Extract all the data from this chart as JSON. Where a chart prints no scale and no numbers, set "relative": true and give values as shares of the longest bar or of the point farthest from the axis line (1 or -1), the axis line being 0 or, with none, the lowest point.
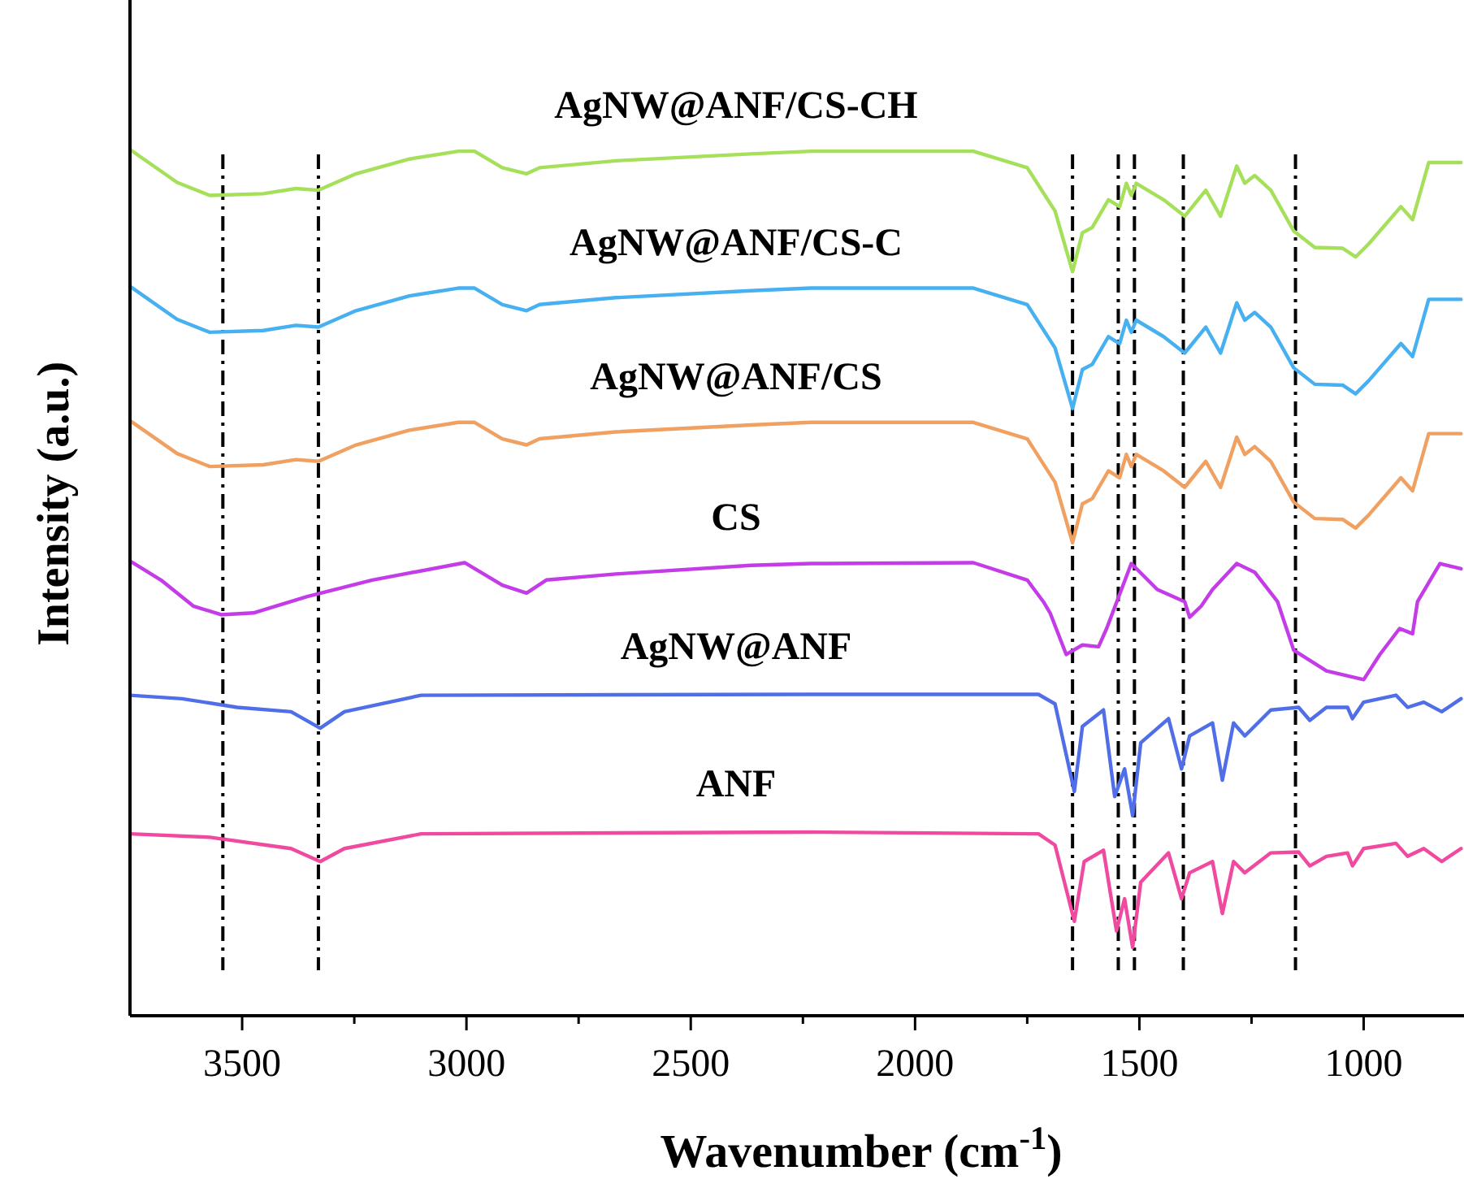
{
  "chart_data": {
    "type": "line",
    "relative": true,
    "xlabel": "Wavenumber (cm$^{-1}$)",
    "ylabel": "Intensity (a.u.)",
    "xlim": [
      3750,
      780
    ],
    "xticks": [
      3500,
      {
        "value": 3250,
        "label": null
      },
      3000,
      {
        "value": 2750,
        "label": null
      },
      2500,
      {
        "value": 2250,
        "label": null
      },
      2000,
      {
        "value": 1750,
        "label": null
      },
      1500,
      {
        "value": 1250,
        "label": null
      },
      1000
    ],
    "grid": false,
    "legend": false,
    "marker": "none",
    "line_style": "solid",
    "ref_lines": [
      {
        "axis": "x",
        "value": 3543,
        "line_style": "dashed",
        "color": "#000000"
      },
      {
        "axis": "x",
        "value": 3330,
        "line_style": "dashed",
        "color": "#000000"
      },
      {
        "axis": "x",
        "value": 1649,
        "line_style": "dashed",
        "color": "#000000"
      },
      {
        "axis": "x",
        "value": 1547,
        "line_style": "dashed",
        "color": "#000000"
      },
      {
        "axis": "x",
        "value": 1511,
        "line_style": "dashed",
        "color": "#000000"
      },
      {
        "axis": "x",
        "value": 1402,
        "line_style": "dashed",
        "color": "#000000"
      },
      {
        "axis": "x",
        "value": 1152,
        "line_style": "dashed",
        "color": "#000000"
      }
    ],
    "series": [
      {
        "name": "AgNW@ANF/CS-CH",
        "color": "#a6e05a",
        "x": [
          3750,
          3645,
          3572,
          3453,
          3380,
          3330,
          3246,
          3127,
          3018,
          2982,
          2920,
          2866,
          2837,
          2667,
          2366,
          2232,
          1870,
          1750,
          1688,
          1649,
          1627,
          1605,
          1569,
          1544,
          1529,
          1518,
          1507,
          1446,
          1399,
          1352,
          1319,
          1283,
          1265,
          1243,
          1207,
          1156,
          1109,
          1047,
          1018,
          989,
          917,
          891,
          855,
          783
        ],
        "values": [
          1.0,
          0.962,
          0.947,
          0.949,
          0.955,
          0.953,
          0.972,
          0.989,
          0.998,
          0.998,
          0.979,
          0.972,
          0.979,
          0.987,
          0.995,
          0.998,
          0.998,
          0.979,
          0.929,
          0.859,
          0.904,
          0.91,
          0.942,
          0.934,
          0.961,
          0.947,
          0.961,
          0.942,
          0.923,
          0.953,
          0.923,
          0.981,
          0.961,
          0.97,
          0.953,
          0.906,
          0.887,
          0.886,
          0.876,
          0.891,
          0.934,
          0.919,
          0.985,
          0.985
        ]
      },
      {
        "name": "AgNW@ANF/CS-C",
        "color": "#47b0f0",
        "x": [
          3750,
          3645,
          3572,
          3453,
          3380,
          3330,
          3246,
          3127,
          3018,
          2982,
          2920,
          2866,
          2837,
          2667,
          2366,
          2232,
          1870,
          1750,
          1688,
          1649,
          1627,
          1605,
          1569,
          1544,
          1529,
          1518,
          1507,
          1446,
          1399,
          1352,
          1319,
          1283,
          1265,
          1243,
          1207,
          1156,
          1109,
          1047,
          1018,
          989,
          917,
          891,
          855,
          783
        ],
        "values": [
          0.842,
          0.804,
          0.789,
          0.791,
          0.797,
          0.795,
          0.814,
          0.831,
          0.84,
          0.84,
          0.821,
          0.814,
          0.821,
          0.829,
          0.837,
          0.84,
          0.84,
          0.821,
          0.771,
          0.701,
          0.746,
          0.752,
          0.784,
          0.776,
          0.803,
          0.789,
          0.803,
          0.784,
          0.765,
          0.795,
          0.765,
          0.823,
          0.803,
          0.812,
          0.795,
          0.748,
          0.729,
          0.728,
          0.718,
          0.733,
          0.776,
          0.761,
          0.827,
          0.827
        ]
      },
      {
        "name": "AgNW@ANF/CS",
        "color": "#f0a060",
        "x": [
          3750,
          3645,
          3572,
          3453,
          3380,
          3330,
          3246,
          3127,
          3018,
          2982,
          2920,
          2866,
          2837,
          2667,
          2366,
          2232,
          1870,
          1750,
          1688,
          1649,
          1627,
          1605,
          1569,
          1544,
          1529,
          1518,
          1507,
          1446,
          1399,
          1352,
          1319,
          1283,
          1265,
          1243,
          1207,
          1156,
          1109,
          1047,
          1018,
          989,
          917,
          891,
          855,
          783
        ],
        "values": [
          0.687,
          0.649,
          0.634,
          0.636,
          0.642,
          0.64,
          0.659,
          0.676,
          0.685,
          0.685,
          0.666,
          0.659,
          0.666,
          0.674,
          0.682,
          0.685,
          0.685,
          0.666,
          0.616,
          0.546,
          0.591,
          0.597,
          0.629,
          0.621,
          0.648,
          0.634,
          0.648,
          0.629,
          0.61,
          0.64,
          0.61,
          0.668,
          0.648,
          0.657,
          0.64,
          0.593,
          0.574,
          0.573,
          0.563,
          0.578,
          0.621,
          0.606,
          0.672,
          0.672
        ]
      },
      {
        "name": "CS",
        "color": "#c43be8",
        "x": [
          3750,
          3681,
          3609,
          3547,
          3475,
          3355,
          3210,
          3004,
          2920,
          2866,
          2822,
          2667,
          2366,
          2232,
          1870,
          1750,
          1714,
          1699,
          1663,
          1627,
          1591,
          1573,
          1518,
          1460,
          1399,
          1388,
          1362,
          1337,
          1283,
          1243,
          1192,
          1156,
          1083,
          1000,
          964,
          920,
          891,
          880,
          830,
          783
        ],
        "values": [
          0.525,
          0.503,
          0.473,
          0.463,
          0.465,
          0.484,
          0.503,
          0.523,
          0.497,
          0.488,
          0.503,
          0.51,
          0.52,
          0.522,
          0.523,
          0.503,
          0.478,
          0.465,
          0.417,
          0.428,
          0.426,
          0.447,
          0.522,
          0.492,
          0.478,
          0.46,
          0.473,
          0.492,
          0.522,
          0.512,
          0.478,
          0.422,
          0.398,
          0.388,
          0.417,
          0.447,
          0.441,
          0.478,
          0.522,
          0.516
        ]
      },
      {
        "name": "AgNW@ANF",
        "color": "#4f6ee8",
        "x": [
          3750,
          3634,
          3511,
          3391,
          3326,
          3272,
          3101,
          2232,
          1725,
          1688,
          1645,
          1627,
          1580,
          1555,
          1533,
          1515,
          1497,
          1435,
          1406,
          1388,
          1337,
          1315,
          1290,
          1265,
          1207,
          1145,
          1120,
          1083,
          1036,
          1025,
          1000,
          928,
          902,
          866,
          826,
          783
        ],
        "values": [
          0.37,
          0.366,
          0.356,
          0.351,
          0.332,
          0.351,
          0.37,
          0.371,
          0.371,
          0.36,
          0.259,
          0.334,
          0.353,
          0.253,
          0.285,
          0.231,
          0.315,
          0.343,
          0.285,
          0.323,
          0.338,
          0.272,
          0.338,
          0.323,
          0.353,
          0.356,
          0.341,
          0.356,
          0.356,
          0.343,
          0.362,
          0.37,
          0.356,
          0.362,
          0.351,
          0.366
        ]
      },
      {
        "name": "ANF",
        "color": "#f04aa0",
        "x": [
          3750,
          3572,
          3391,
          3326,
          3272,
          3101,
          2232,
          1725,
          1688,
          1645,
          1623,
          1580,
          1551,
          1533,
          1515,
          1497,
          1435,
          1406,
          1388,
          1337,
          1315,
          1290,
          1265,
          1207,
          1145,
          1120,
          1083,
          1036,
          1025,
          1000,
          928,
          902,
          866,
          826,
          783
        ],
        "values": [
          0.21,
          0.206,
          0.193,
          0.178,
          0.193,
          0.21,
          0.212,
          0.21,
          0.197,
          0.109,
          0.178,
          0.191,
          0.098,
          0.135,
          0.079,
          0.154,
          0.188,
          0.135,
          0.165,
          0.178,
          0.118,
          0.178,
          0.165,
          0.188,
          0.189,
          0.173,
          0.184,
          0.188,
          0.173,
          0.193,
          0.199,
          0.184,
          0.193,
          0.178,
          0.193
        ]
      }
    ]
  }
}
